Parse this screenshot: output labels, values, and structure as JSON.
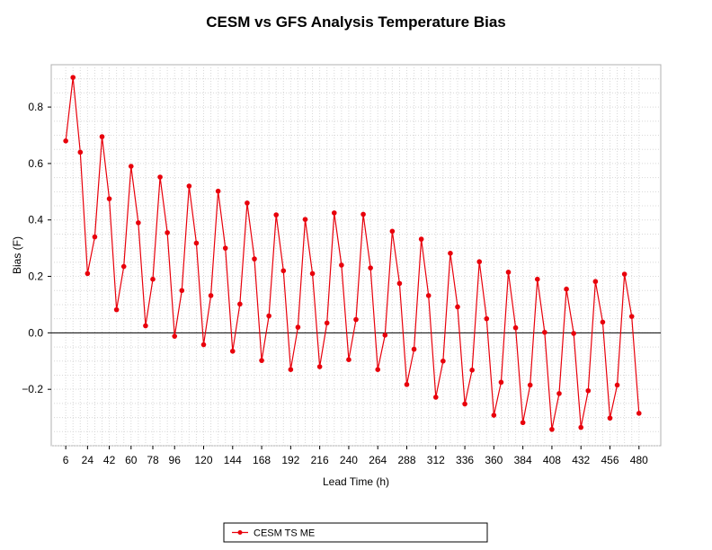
{
  "chart_data": {
    "type": "line",
    "title": "CESM vs GFS Analysis Temperature Bias",
    "xlabel": "Lead Time (h)",
    "ylabel": "Bias (F)",
    "xlim": [
      -6,
      498
    ],
    "ylim": [
      -0.4,
      0.95
    ],
    "x_ticks": [
      6,
      24,
      42,
      60,
      78,
      96,
      120,
      144,
      168,
      192,
      216,
      240,
      264,
      288,
      312,
      336,
      360,
      384,
      408,
      432,
      456,
      480
    ],
    "y_ticks": [
      -0.2,
      0.0,
      0.2,
      0.4,
      0.6,
      0.8
    ],
    "y_tick_labels": [
      "−0.2",
      "0.0",
      "0.2",
      "0.4",
      "0.6",
      "0.8"
    ],
    "zero_line": true,
    "grid": true,
    "legend_position": "bottom",
    "series": [
      {
        "name": "CESM TS ME",
        "color": "#e8000b",
        "x": [
          6,
          12,
          18,
          24,
          30,
          36,
          42,
          48,
          54,
          60,
          66,
          72,
          78,
          84,
          90,
          96,
          102,
          108,
          114,
          120,
          126,
          132,
          138,
          144,
          150,
          156,
          162,
          168,
          174,
          180,
          186,
          192,
          198,
          204,
          210,
          216,
          222,
          228,
          234,
          240,
          246,
          252,
          258,
          264,
          270,
          276,
          282,
          288,
          294,
          300,
          306,
          312,
          318,
          324,
          330,
          336,
          342,
          348,
          354,
          360,
          366,
          372,
          378,
          384,
          390,
          396,
          402,
          408,
          414,
          420,
          426,
          432,
          438,
          444,
          450,
          456,
          462,
          468,
          474,
          480
        ],
        "values": [
          0.68,
          0.905,
          0.64,
          0.21,
          0.34,
          0.695,
          0.475,
          0.082,
          0.235,
          0.59,
          0.39,
          0.025,
          0.19,
          0.552,
          0.355,
          -0.012,
          0.15,
          0.52,
          0.318,
          -0.042,
          0.132,
          0.502,
          0.3,
          -0.065,
          0.102,
          0.46,
          0.262,
          -0.098,
          0.06,
          0.418,
          0.22,
          -0.13,
          0.02,
          0.402,
          0.21,
          -0.12,
          0.035,
          0.425,
          0.24,
          -0.095,
          0.047,
          0.42,
          0.23,
          -0.13,
          -0.008,
          0.36,
          0.175,
          -0.183,
          -0.058,
          0.332,
          0.132,
          -0.228,
          -0.1,
          0.282,
          0.092,
          -0.252,
          -0.132,
          0.252,
          0.05,
          -0.292,
          -0.175,
          0.215,
          0.018,
          -0.318,
          -0.185,
          0.19,
          0.002,
          -0.342,
          -0.215,
          0.155,
          -0.002,
          -0.335,
          -0.205,
          0.182,
          0.038,
          -0.302,
          -0.185,
          0.208,
          0.058,
          -0.285
        ]
      }
    ]
  }
}
